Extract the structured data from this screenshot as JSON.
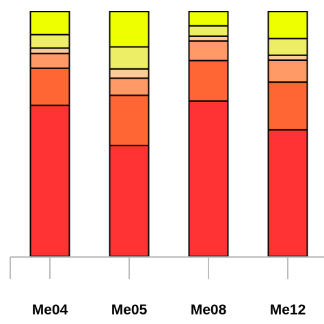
{
  "chart_data": {
    "type": "bar",
    "stacked": true,
    "title": "",
    "xlabel": "",
    "ylabel": "",
    "ylim": [
      0,
      1
    ],
    "categories": [
      "Me04",
      "Me05",
      "Me08",
      "Me12"
    ],
    "series": [
      {
        "color": "#ff3333",
        "values": [
          0.617,
          0.453,
          0.635,
          0.517
        ]
      },
      {
        "color": "#ff6633",
        "values": [
          0.152,
          0.205,
          0.165,
          0.195
        ]
      },
      {
        "color": "#ff9966",
        "values": [
          0.06,
          0.07,
          0.08,
          0.09
        ]
      },
      {
        "color": "#ffcc99",
        "values": [
          0.022,
          0.038,
          0.02,
          0.02
        ]
      },
      {
        "color": "#eeee66",
        "values": [
          0.055,
          0.09,
          0.042,
          0.068
        ]
      },
      {
        "color": "#eeff00",
        "values": [
          0.094,
          0.144,
          0.058,
          0.11
        ]
      }
    ]
  }
}
